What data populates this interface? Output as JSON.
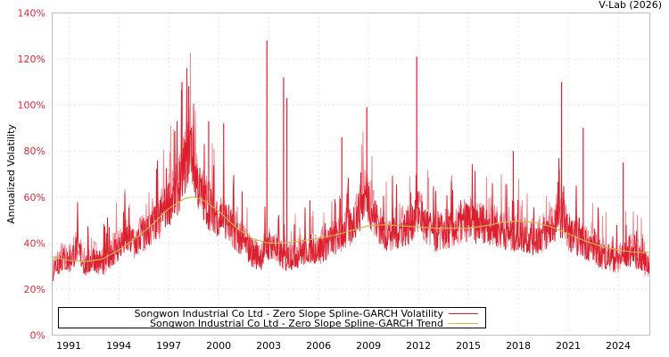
{
  "header": {
    "credit": "V-Lab (2026)"
  },
  "colors": {
    "volatility": "#dc1f2e",
    "volatility_light": "#eb8a92",
    "trend": "#d8b24a",
    "axis_tick_label": "#d42b3a",
    "grid": "#c8c8c8",
    "frame": "#c0c0c0"
  },
  "legend": {
    "items": [
      {
        "label": "Songwon Industrial Co Ltd - Zero Slope Spline-GARCH Volatility",
        "color": "#dc1f2e"
      },
      {
        "label": "Songwon Industrial Co Ltd - Zero Slope Spline-GARCH Trend",
        "color": "#d8b24a"
      }
    ]
  },
  "chart_data": {
    "type": "line",
    "title": "",
    "xlabel": "",
    "ylabel": "Annualized Volatility",
    "ylim": [
      0,
      140
    ],
    "xlim": [
      1990.0,
      2025.9
    ],
    "y_ticks": [
      "0%",
      "20%",
      "40%",
      "60%",
      "80%",
      "100%",
      "120%",
      "140%"
    ],
    "y_tick_values": [
      0,
      20,
      40,
      60,
      80,
      100,
      120,
      140
    ],
    "x_ticks": [
      "1991",
      "1994",
      "1997",
      "2000",
      "2003",
      "2006",
      "2009",
      "2012",
      "2015",
      "2018",
      "2021",
      "2024"
    ],
    "x_tick_values": [
      1991,
      1994,
      1997,
      2000,
      2003,
      2006,
      2009,
      2012,
      2015,
      2018,
      2021,
      2024
    ],
    "grid": true,
    "legend_position": "bottom-left inside",
    "series": [
      {
        "name": "Songwon Industrial Co Ltd - Zero Slope Spline-GARCH Volatility",
        "x": [
          1990.0,
          1990.5,
          1991.0,
          1991.5,
          1992.0,
          1992.5,
          1993.0,
          1993.5,
          1994.0,
          1994.5,
          1995.0,
          1995.5,
          1996.0,
          1996.5,
          1997.0,
          1997.5,
          1998.0,
          1998.3,
          1998.6,
          1999.0,
          1999.5,
          2000.0,
          2000.5,
          2001.0,
          2001.5,
          2002.0,
          2002.5,
          2002.9,
          2003.2,
          2003.6,
          2004.0,
          2004.5,
          2005.0,
          2005.5,
          2006.0,
          2006.5,
          2007.0,
          2007.5,
          2008.0,
          2008.5,
          2008.9,
          2009.3,
          2009.7,
          2010.0,
          2010.5,
          2011.0,
          2011.5,
          2011.9,
          2012.3,
          2012.7,
          2013.0,
          2013.5,
          2014.0,
          2014.5,
          2015.0,
          2015.5,
          2016.0,
          2016.5,
          2017.0,
          2017.5,
          2018.0,
          2018.5,
          2019.0,
          2019.5,
          2020.0,
          2020.3,
          2020.7,
          2021.0,
          2021.5,
          2022.0,
          2022.5,
          2023.0,
          2023.5,
          2024.0,
          2024.5,
          2025.0,
          2025.5,
          2025.9
        ],
        "values": [
          28,
          33,
          32,
          38,
          30,
          34,
          31,
          36,
          38,
          42,
          40,
          44,
          47,
          52,
          58,
          62,
          75,
          85,
          70,
          60,
          55,
          52,
          50,
          45,
          40,
          36,
          34,
          38,
          40,
          36,
          33,
          35,
          36,
          38,
          37,
          40,
          42,
          45,
          48,
          55,
          62,
          52,
          48,
          44,
          45,
          46,
          48,
          55,
          50,
          46,
          44,
          45,
          46,
          47,
          50,
          48,
          49,
          47,
          46,
          44,
          44,
          43,
          42,
          44,
          46,
          50,
          52,
          45,
          42,
          40,
          38,
          35,
          34,
          33,
          35,
          36,
          32,
          30
        ],
        "spikes": [
          {
            "x": 1997.8,
            "y": 110
          },
          {
            "x": 1998.2,
            "y": 108
          },
          {
            "x": 1999.4,
            "y": 93
          },
          {
            "x": 2000.3,
            "y": 92
          },
          {
            "x": 2002.9,
            "y": 128
          },
          {
            "x": 2003.9,
            "y": 112
          },
          {
            "x": 2004.1,
            "y": 103
          },
          {
            "x": 2007.4,
            "y": 86
          },
          {
            "x": 2008.9,
            "y": 99
          },
          {
            "x": 2011.9,
            "y": 121
          },
          {
            "x": 2017.7,
            "y": 80
          },
          {
            "x": 2020.6,
            "y": 110
          },
          {
            "x": 2021.9,
            "y": 90
          },
          {
            "x": 2024.3,
            "y": 75
          }
        ]
      },
      {
        "name": "Songwon Industrial Co Ltd - Zero Slope Spline-GARCH Trend",
        "x": [
          1990.0,
          1991.0,
          1992.0,
          1993.0,
          1994.0,
          1995.0,
          1996.0,
          1997.0,
          1998.0,
          1998.5,
          1999.0,
          2000.0,
          2001.0,
          2002.0,
          2003.0,
          2004.0,
          2005.0,
          2006.0,
          2007.0,
          2008.0,
          2009.0,
          2010.0,
          2011.0,
          2012.0,
          2013.0,
          2014.0,
          2015.0,
          2016.0,
          2017.0,
          2018.0,
          2019.0,
          2020.0,
          2021.0,
          2022.0,
          2023.0,
          2024.0,
          2025.0,
          2025.9
        ],
        "values": [
          34,
          32.5,
          32,
          33,
          37,
          42,
          48,
          55,
          59.5,
          60,
          59,
          54,
          47,
          42,
          40,
          40,
          41,
          42,
          43.5,
          45.5,
          47.5,
          48,
          47.5,
          47,
          46.5,
          46.5,
          46.5,
          47.5,
          49,
          49.5,
          49,
          47,
          44,
          41,
          38.5,
          37,
          36,
          36
        ]
      }
    ]
  }
}
